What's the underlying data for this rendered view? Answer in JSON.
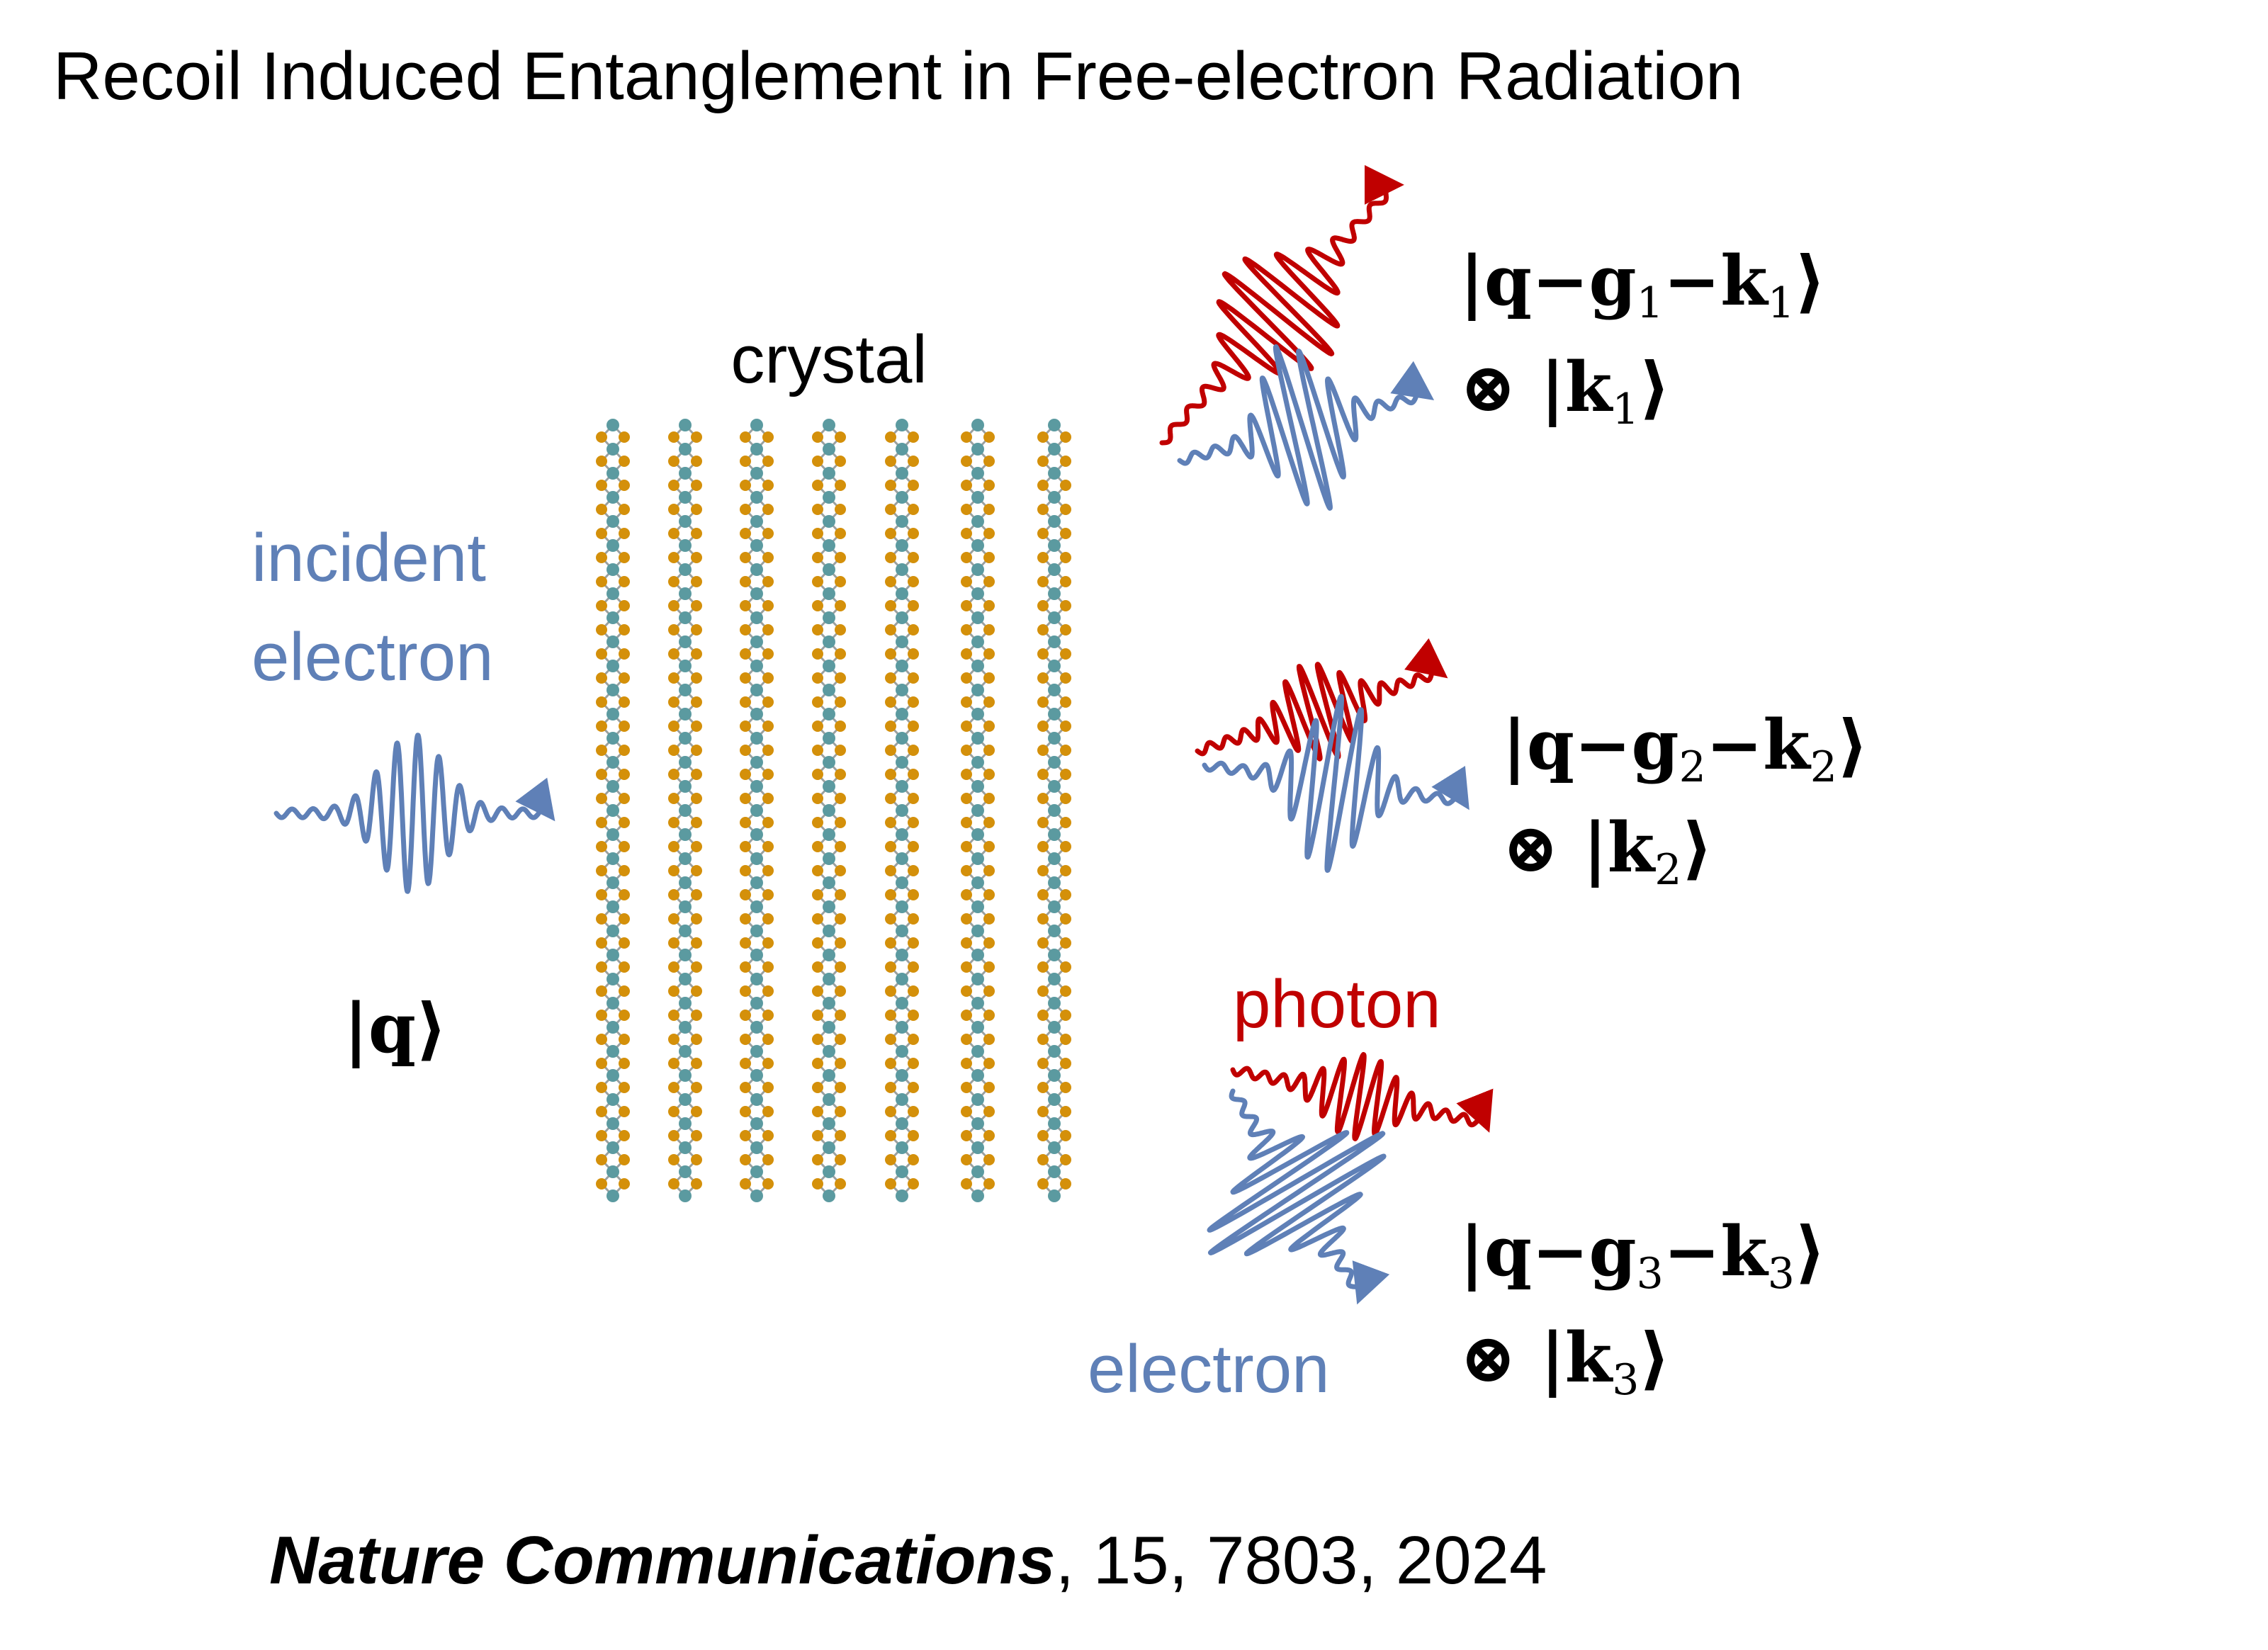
{
  "title": "Recoil Induced Entanglement in Free-electron Radiation",
  "labels": {
    "crystal": "crystal",
    "incident_line1": "incident",
    "incident_line2": "electron",
    "photon": "photon",
    "electron": "electron"
  },
  "states": {
    "incident": "|q⟩",
    "out": [
      {
        "line1_pre": "|q−g",
        "line1_sub1": "1",
        "line1_mid": "−k",
        "line1_sub2": "1",
        "line1_post": "⟩",
        "line2_pre": "⊗ |k",
        "line2_sub": "1",
        "line2_post": "⟩"
      },
      {
        "line1_pre": "|q−g",
        "line1_sub1": "2",
        "line1_mid": "−k",
        "line1_sub2": "2",
        "line1_post": "⟩",
        "line2_pre": "⊗ |k",
        "line2_sub": "2",
        "line2_post": "⟩"
      },
      {
        "line1_pre": "|q−g",
        "line1_sub1": "3",
        "line1_mid": "−k",
        "line1_sub2": "3",
        "line1_post": "⟩",
        "line2_pre": "⊗ |k",
        "line2_sub": "3",
        "line2_post": "⟩"
      }
    ]
  },
  "citation": {
    "journal": "Nature Communications",
    "details": ", 15, 7803, 2024"
  },
  "colors": {
    "electron": "#5f80b7",
    "photon": "#c00000",
    "atom_teal": "#5b9aa0",
    "atom_orange": "#d4900a",
    "bond": "#9aa0a0"
  }
}
